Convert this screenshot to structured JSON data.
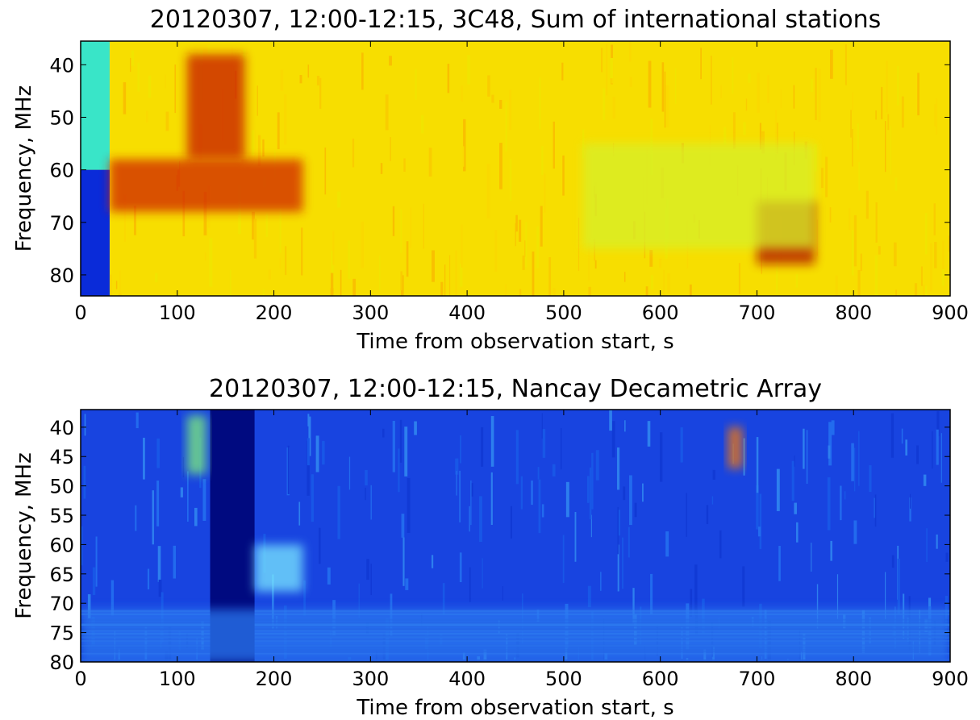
{
  "chart_data": [
    {
      "type": "heatmap",
      "title": "20120307, 12:00-12:15, 3C48, Sum of international stations",
      "xlabel": "Time from observation start, s",
      "ylabel": "Frequency, MHz",
      "xlim": [
        0,
        900
      ],
      "ylim": [
        84,
        35.5
      ],
      "xticks": [
        0,
        100,
        200,
        300,
        400,
        500,
        600,
        700,
        800,
        900
      ],
      "yticks": [
        40,
        50,
        60,
        70,
        80
      ],
      "colormap": "jet",
      "background_color": "#f7de00",
      "features": [
        {
          "kind": "masked_block",
          "x": [
            0,
            30
          ],
          "y": [
            35.5,
            60
          ],
          "color": "#39e5c8"
        },
        {
          "kind": "masked_block",
          "x": [
            0,
            30
          ],
          "y": [
            60,
            84
          ],
          "color": "#0a2bd9"
        },
        {
          "kind": "intense_region",
          "x": [
            30,
            230
          ],
          "y": [
            58,
            68
          ],
          "color": "#d02000"
        },
        {
          "kind": "intense_region",
          "x": [
            110,
            170
          ],
          "y": [
            38,
            58
          ],
          "color": "#c81800"
        },
        {
          "kind": "intense_region",
          "x": [
            700,
            760
          ],
          "y": [
            66,
            78
          ],
          "color": "#b01000"
        },
        {
          "kind": "quiet_region",
          "x": [
            520,
            760
          ],
          "y": [
            55,
            75
          ],
          "color": "#d6f02a"
        }
      ]
    },
    {
      "type": "heatmap",
      "title": "20120307, 12:00-12:15, Nancay Decametric Array",
      "xlabel": "Time from observation start, s",
      "ylabel": "Frequency, MHz",
      "xlim": [
        0,
        900
      ],
      "ylim": [
        80,
        37
      ],
      "xticks": [
        0,
        100,
        200,
        300,
        400,
        500,
        600,
        700,
        800,
        900
      ],
      "yticks": [
        40,
        45,
        50,
        55,
        60,
        65,
        70,
        75,
        80
      ],
      "colormap": "jet",
      "background_color": "#1844e0",
      "features": [
        {
          "kind": "masked_block",
          "x": [
            134,
            180
          ],
          "y": [
            37,
            80
          ],
          "color": "#000a80"
        },
        {
          "kind": "noisy_band",
          "x": [
            0,
            900
          ],
          "y": [
            71,
            80
          ],
          "color": "#2a78f0"
        },
        {
          "kind": "bright_region",
          "x": [
            110,
            130
          ],
          "y": [
            38,
            48
          ],
          "color": "#7ff07a"
        },
        {
          "kind": "bright_region",
          "x": [
            180,
            230
          ],
          "y": [
            60,
            68
          ],
          "color": "#7ae8ff"
        },
        {
          "kind": "bright_region",
          "x": [
            670,
            685
          ],
          "y": [
            40,
            47
          ],
          "color": "#ff7a00"
        }
      ]
    }
  ]
}
